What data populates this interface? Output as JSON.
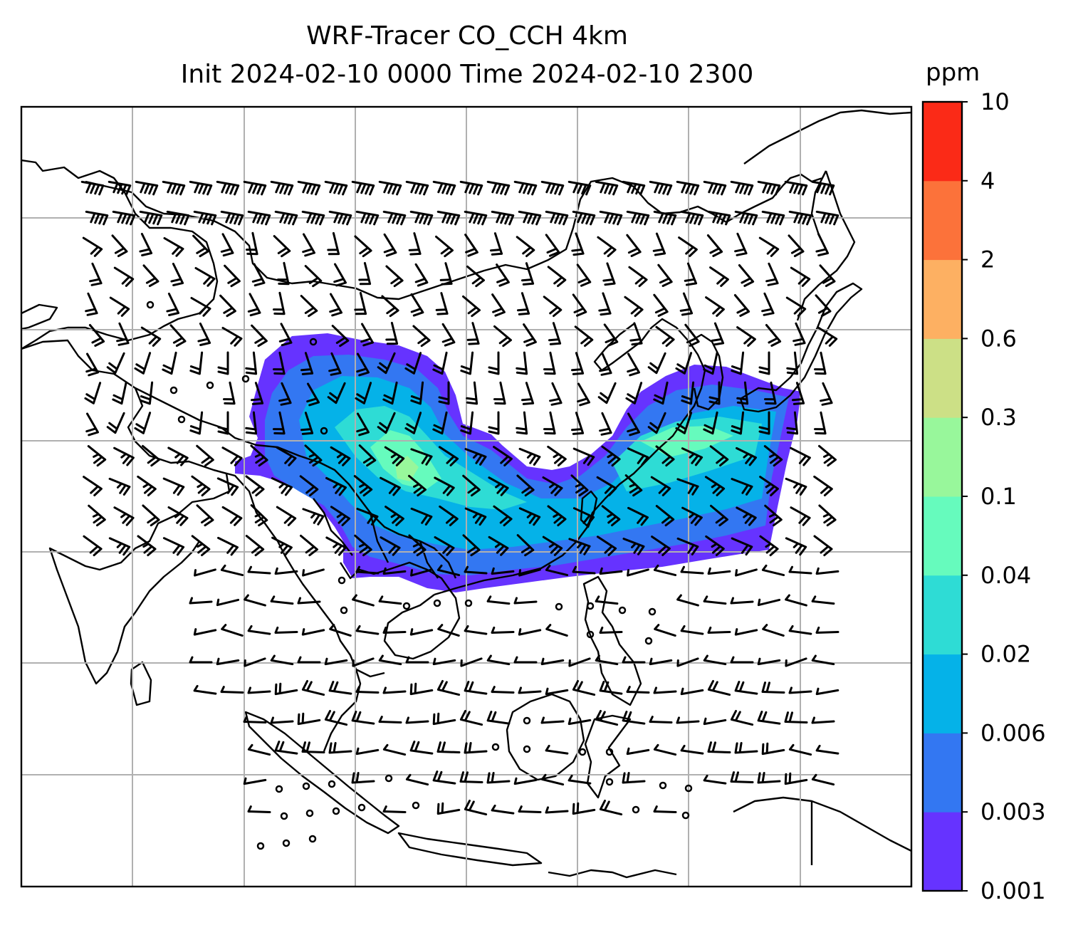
{
  "chart_data": {
    "type": "heatmap",
    "title": "WRF-Tracer CO_CCH 4km",
    "subtitle": "Init 2024-02-10 0000 Time 2024-02-10 2300",
    "xlabel": "",
    "ylabel": "",
    "grid": true,
    "legend": "colorbar-right",
    "colorbar": {
      "label": "ppm",
      "levels": [
        "0.001",
        "0.003",
        "0.006",
        "0.02",
        "0.04",
        "0.1",
        "0.3",
        "0.6",
        "2",
        "4",
        "10"
      ],
      "colors": [
        "#6633ff",
        "#3377f2",
        "#05b2e8",
        "#2edcd5",
        "#66fbbd",
        "#98f79b",
        "#cce086",
        "#fdb062",
        "#fc723a",
        "#fb2a17"
      ]
    },
    "description": "map of East/Southeast Asia with tracer concentration field and wind barbs"
  }
}
